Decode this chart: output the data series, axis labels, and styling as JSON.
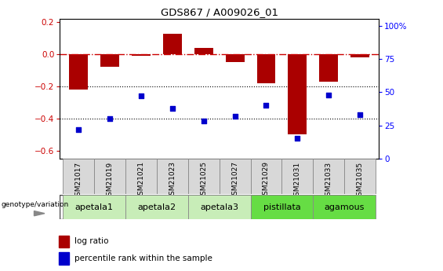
{
  "title": "GDS867 / A009026_01",
  "samples": [
    "GSM21017",
    "GSM21019",
    "GSM21021",
    "GSM21023",
    "GSM21025",
    "GSM21027",
    "GSM21029",
    "GSM21031",
    "GSM21033",
    "GSM21035"
  ],
  "log_ratio": [
    -0.22,
    -0.08,
    -0.01,
    0.13,
    0.04,
    -0.05,
    -0.18,
    -0.5,
    -0.17,
    -0.02
  ],
  "percentile_rank": [
    22,
    30,
    47,
    38,
    28,
    32,
    40,
    15,
    48,
    33
  ],
  "group_spans": [
    {
      "start": 0,
      "end": 1,
      "name": "apetala1",
      "color": "#c8edb8"
    },
    {
      "start": 2,
      "end": 3,
      "name": "apetala2",
      "color": "#c8edb8"
    },
    {
      "start": 4,
      "end": 5,
      "name": "apetala3",
      "color": "#c8edb8"
    },
    {
      "start": 6,
      "end": 7,
      "name": "pistillata",
      "color": "#66dd44"
    },
    {
      "start": 8,
      "end": 9,
      "name": "agamous",
      "color": "#66dd44"
    }
  ],
  "ylim_left": [
    -0.65,
    0.22
  ],
  "ylim_right": [
    0,
    105
  ],
  "yticks_left": [
    -0.6,
    -0.4,
    -0.2,
    0.0,
    0.2
  ],
  "yticks_right": [
    0,
    25,
    50,
    75,
    100
  ],
  "bar_color": "#aa0000",
  "dot_color": "#0000cc",
  "hline_color": "#cc0000",
  "dotted_line_color": "#000000",
  "legend_bar_label": "log ratio",
  "legend_dot_label": "percentile rank within the sample",
  "group_header": "genotype/variation",
  "sample_box_color": "#d8d8d8",
  "plot_bg": "#ffffff"
}
